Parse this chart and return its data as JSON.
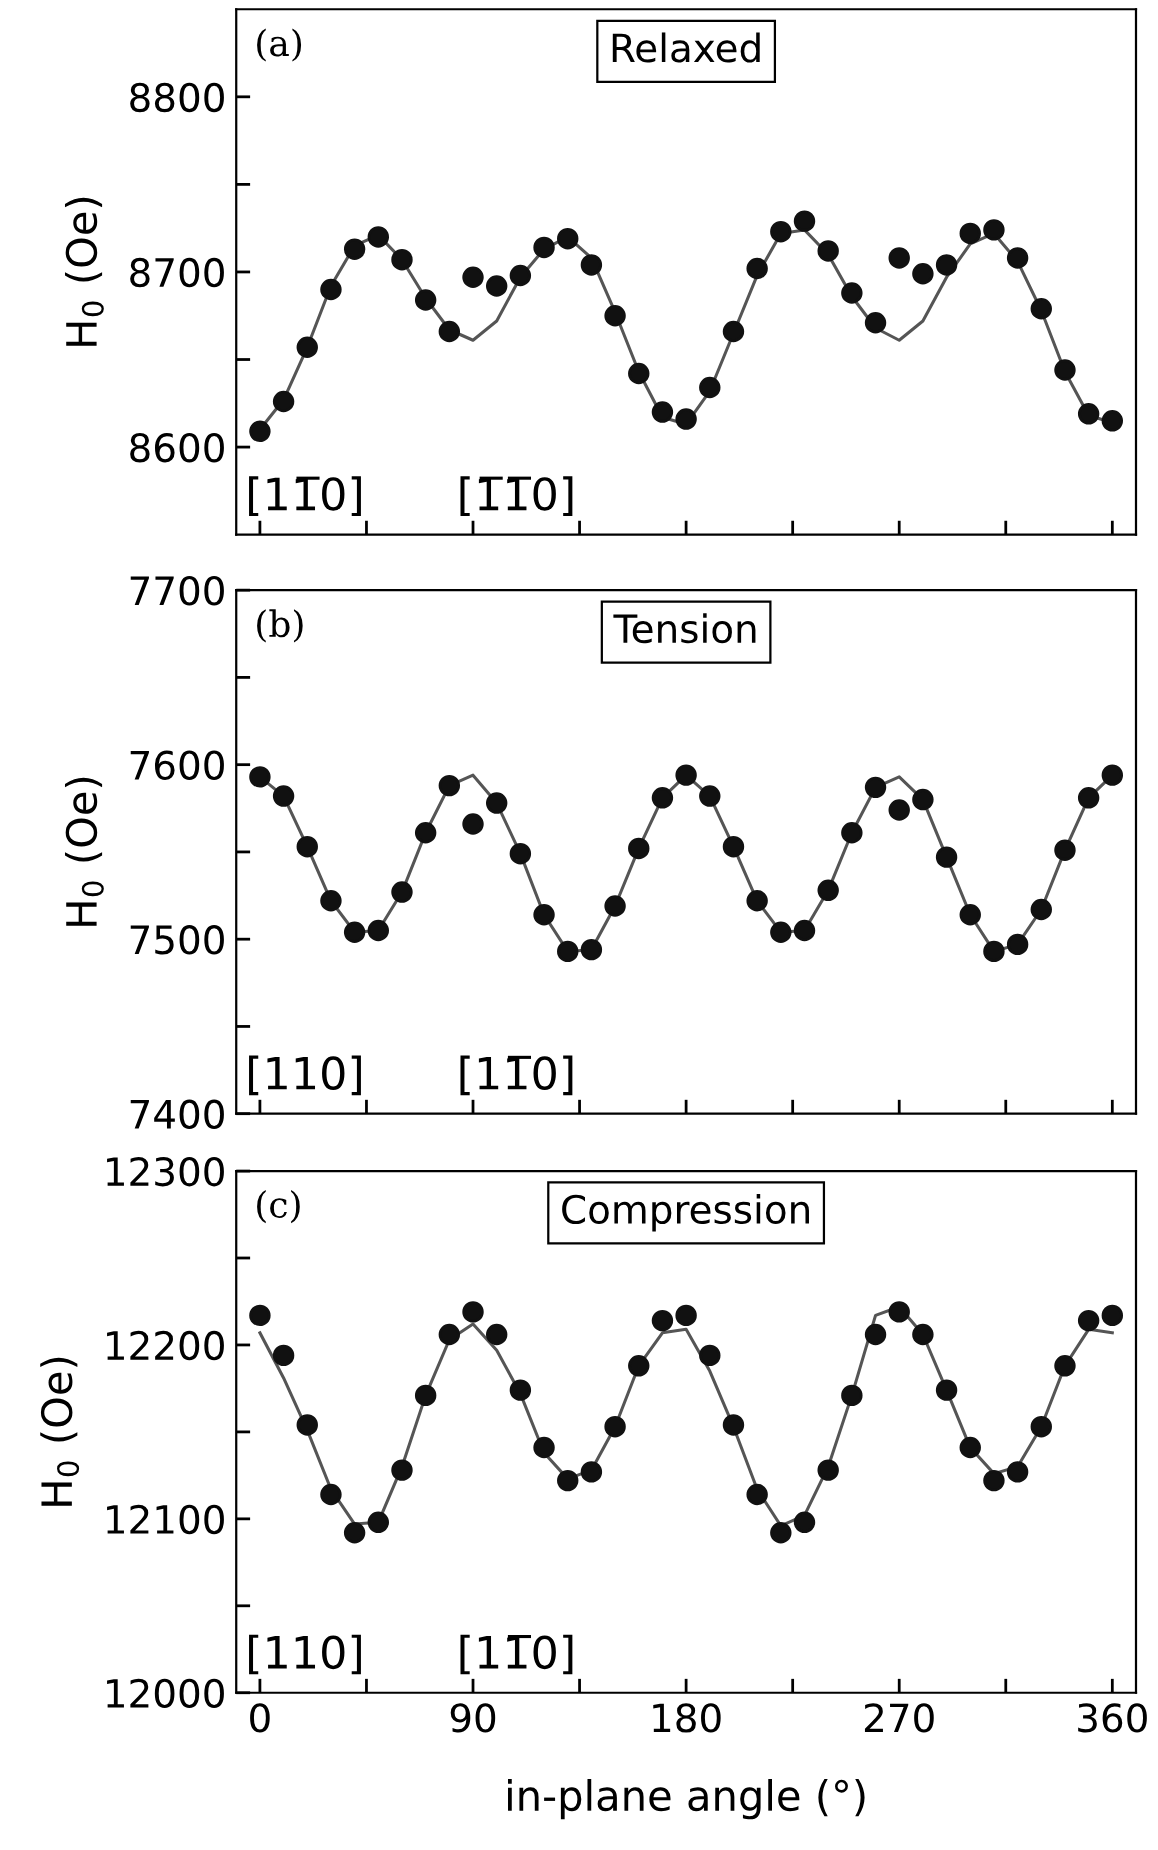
{
  "chart_data": [
    {
      "type": "scatter",
      "title": "Relaxed",
      "ylabel": "H$_{0}$ (Oe)",
      "x": [
        0,
        10,
        20,
        30,
        40,
        50,
        60,
        70,
        80,
        90,
        100,
        110,
        120,
        130,
        140,
        150,
        160,
        170,
        180,
        190,
        200,
        210,
        220,
        230,
        240,
        250,
        260,
        270,
        280,
        290,
        300,
        310,
        320,
        330,
        340,
        350,
        360
      ],
      "series": [
        {
          "color": "#111111",
          "marker": "circle",
          "values": [
            8609,
            8626,
            8657,
            8690,
            8713,
            8720,
            8707,
            8684,
            8666,
            8697,
            8692,
            8698,
            8714,
            8719,
            8704,
            8675,
            8642,
            8620,
            8616,
            8634,
            8666,
            8702,
            8723,
            8729,
            8712,
            8688,
            8671,
            8708,
            8699,
            8704,
            8722,
            8724,
            8708,
            8679,
            8644,
            8619,
            8615
          ]
        },
        {
          "type": "line",
          "color": "#555555",
          "marker": "none",
          "line_style": "solid",
          "values": [
            8610,
            8627,
            8657,
            8692,
            8715,
            8721,
            8707,
            8685,
            8667,
            8661,
            8672,
            8697,
            8713,
            8720,
            8708,
            8677,
            8643,
            8617,
            8613,
            8632,
            8665,
            8698,
            8722,
            8724,
            8710,
            8686,
            8668,
            8661,
            8672,
            8697,
            8716,
            8722,
            8706,
            8678,
            8643,
            8618,
            8614
          ]
        }
      ],
      "xlim": [
        -10,
        370
      ],
      "xticks": [
        0,
        {
          "value": 45,
          "label": null
        },
        90,
        {
          "value": 135,
          "label": null
        },
        180,
        {
          "value": 225,
          "label": null
        },
        270,
        {
          "value": 315,
          "label": null
        },
        360
      ],
      "ylim": [
        8550,
        8850
      ],
      "yticks": [
        8600,
        {
          "value": 8650,
          "label": null
        },
        8700,
        {
          "value": 8750,
          "label": null
        },
        8800
      ],
      "tick_labels": "y",
      "grid": false,
      "legend": false,
      "annotations": [
        "(a)",
        "[11̅0]",
        "[1̅1̅0]"
      ]
    },
    {
      "type": "scatter",
      "title": "Tension",
      "ylabel": "H$_{0}$ (Oe)",
      "x": [
        0,
        10,
        20,
        30,
        40,
        50,
        60,
        70,
        80,
        90,
        100,
        110,
        120,
        130,
        140,
        150,
        160,
        170,
        180,
        190,
        200,
        210,
        220,
        230,
        240,
        250,
        260,
        270,
        280,
        290,
        300,
        310,
        320,
        330,
        340,
        350,
        360
      ],
      "series": [
        {
          "color": "#111111",
          "marker": "circle",
          "values": [
            7593,
            7582,
            7553,
            7522,
            7504,
            7505,
            7527,
            7561,
            7588,
            7566,
            7578,
            7549,
            7514,
            7493,
            7494,
            7519,
            7552,
            7581,
            7594,
            7582,
            7553,
            7522,
            7504,
            7505,
            7528,
            7561,
            7587,
            7574,
            7580,
            7547,
            7514,
            7493,
            7497,
            7517,
            7551,
            7581,
            7594
          ]
        },
        {
          "type": "line",
          "color": "#555555",
          "marker": "none",
          "line_style": "solid",
          "values": [
            7593,
            7582,
            7553,
            7522,
            7504,
            7505,
            7527,
            7561,
            7588,
            7594,
            7578,
            7549,
            7514,
            7493,
            7494,
            7519,
            7552,
            7581,
            7594,
            7582,
            7553,
            7522,
            7504,
            7505,
            7528,
            7561,
            7587,
            7593,
            7580,
            7547,
            7514,
            7493,
            7497,
            7517,
            7551,
            7581,
            7594
          ]
        }
      ],
      "xlim": [
        -10,
        370
      ],
      "xticks": [
        0,
        {
          "value": 45,
          "label": null
        },
        90,
        {
          "value": 135,
          "label": null
        },
        180,
        {
          "value": 225,
          "label": null
        },
        270,
        {
          "value": 315,
          "label": null
        },
        360
      ],
      "ylim": [
        7400,
        7700
      ],
      "yticks": [
        7400,
        {
          "value": 7450,
          "label": null
        },
        7500,
        {
          "value": 7550,
          "label": null
        },
        7600,
        {
          "value": 7650,
          "label": null
        },
        7700
      ],
      "tick_labels": "y",
      "grid": false,
      "legend": false,
      "annotations": [
        "(b)",
        "[110]",
        "[11̅0]"
      ]
    },
    {
      "type": "scatter",
      "title": "Compression",
      "ylabel": "H$_{0}$ (Oe)",
      "xlabel": "in-plane angle (°)",
      "x": [
        0,
        10,
        20,
        30,
        40,
        50,
        60,
        70,
        80,
        90,
        100,
        110,
        120,
        130,
        140,
        150,
        160,
        170,
        180,
        190,
        200,
        210,
        220,
        230,
        240,
        250,
        260,
        270,
        280,
        290,
        300,
        310,
        320,
        330,
        340,
        350,
        360
      ],
      "series": [
        {
          "color": "#111111",
          "marker": "circle",
          "values": [
            12217,
            12194,
            12154,
            12114,
            12092,
            12098,
            12128,
            12171,
            12206,
            12219,
            12206,
            12174,
            12141,
            12122,
            12127,
            12153,
            12188,
            12214,
            12217,
            12194,
            12154,
            12114,
            12092,
            12098,
            12128,
            12171,
            12206,
            12219,
            12206,
            12174,
            12141,
            12122,
            12127,
            12153,
            12188,
            12214,
            12217
          ]
        },
        {
          "type": "line",
          "color": "#555555",
          "marker": "none",
          "line_style": "solid",
          "values": [
            12207,
            12181,
            12151,
            12117,
            12097,
            12098,
            12130,
            12171,
            12203,
            12212,
            12197,
            12172,
            12138,
            12123,
            12128,
            12153,
            12188,
            12207,
            12209,
            12185,
            12153,
            12117,
            12096,
            12102,
            12130,
            12171,
            12217,
            12222,
            12206,
            12174,
            12141,
            12126,
            12130,
            12153,
            12188,
            12209,
            12207
          ]
        }
      ],
      "xlim": [
        -10,
        370
      ],
      "xticks": [
        0,
        {
          "value": 45,
          "label": null
        },
        90,
        {
          "value": 135,
          "label": null
        },
        180,
        {
          "value": 225,
          "label": null
        },
        270,
        {
          "value": 315,
          "label": null
        },
        360
      ],
      "ylim": [
        12000,
        12300
      ],
      "yticks": [
        12000,
        {
          "value": 12050,
          "label": null
        },
        12100,
        {
          "value": 12150,
          "label": null
        },
        12200,
        {
          "value": 12250,
          "label": null
        },
        12300
      ],
      "grid": false,
      "legend": false,
      "annotations": [
        "(c)",
        "[110]",
        "[11̅0]"
      ]
    }
  ]
}
